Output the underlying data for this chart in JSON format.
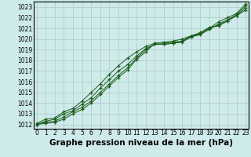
{
  "title": "Graphe pression niveau de la mer (hPa)",
  "bg_color": "#ceeaea",
  "grid_color": "#b0c8c8",
  "line_color": "#1a5c1a",
  "marker_color": "#1a5c1a",
  "x_ticks": [
    0,
    1,
    2,
    3,
    4,
    5,
    6,
    7,
    8,
    9,
    10,
    11,
    12,
    13,
    14,
    15,
    16,
    17,
    18,
    19,
    20,
    21,
    22,
    23
  ],
  "y_ticks": [
    1012,
    1013,
    1014,
    1015,
    1016,
    1017,
    1018,
    1019,
    1020,
    1021,
    1022,
    1023
  ],
  "ylim": [
    1011.6,
    1023.5
  ],
  "xlim": [
    -0.3,
    23.3
  ],
  "series": [
    [
      1012.0,
      1012.1,
      1012.2,
      1012.5,
      1013.0,
      1013.4,
      1014.0,
      1014.8,
      1015.6,
      1016.4,
      1017.1,
      1018.1,
      1018.8,
      1019.6,
      1019.6,
      1019.7,
      1019.8,
      1020.3,
      1020.5,
      1021.0,
      1021.6,
      1022.0,
      1022.4,
      1023.3
    ],
    [
      1012.0,
      1012.2,
      1012.3,
      1012.7,
      1013.2,
      1013.6,
      1014.2,
      1015.0,
      1015.8,
      1016.6,
      1017.3,
      1018.2,
      1019.0,
      1019.5,
      1019.5,
      1019.6,
      1019.7,
      1020.2,
      1020.4,
      1020.9,
      1021.4,
      1021.8,
      1022.3,
      1023.1
    ],
    [
      1012.0,
      1012.3,
      1012.5,
      1013.0,
      1013.3,
      1013.9,
      1014.5,
      1015.4,
      1016.2,
      1017.0,
      1017.6,
      1018.4,
      1019.1,
      1019.5,
      1019.5,
      1019.6,
      1019.8,
      1020.2,
      1020.5,
      1021.0,
      1021.3,
      1021.7,
      1022.2,
      1022.9
    ],
    [
      1012.1,
      1012.5,
      1012.6,
      1013.2,
      1013.5,
      1014.2,
      1015.0,
      1015.8,
      1016.7,
      1017.5,
      1018.2,
      1018.8,
      1019.3,
      1019.6,
      1019.7,
      1019.8,
      1020.0,
      1020.3,
      1020.6,
      1021.1,
      1021.2,
      1021.7,
      1022.2,
      1022.7
    ]
  ],
  "title_fontsize": 7.5,
  "tick_fontsize": 5.5
}
